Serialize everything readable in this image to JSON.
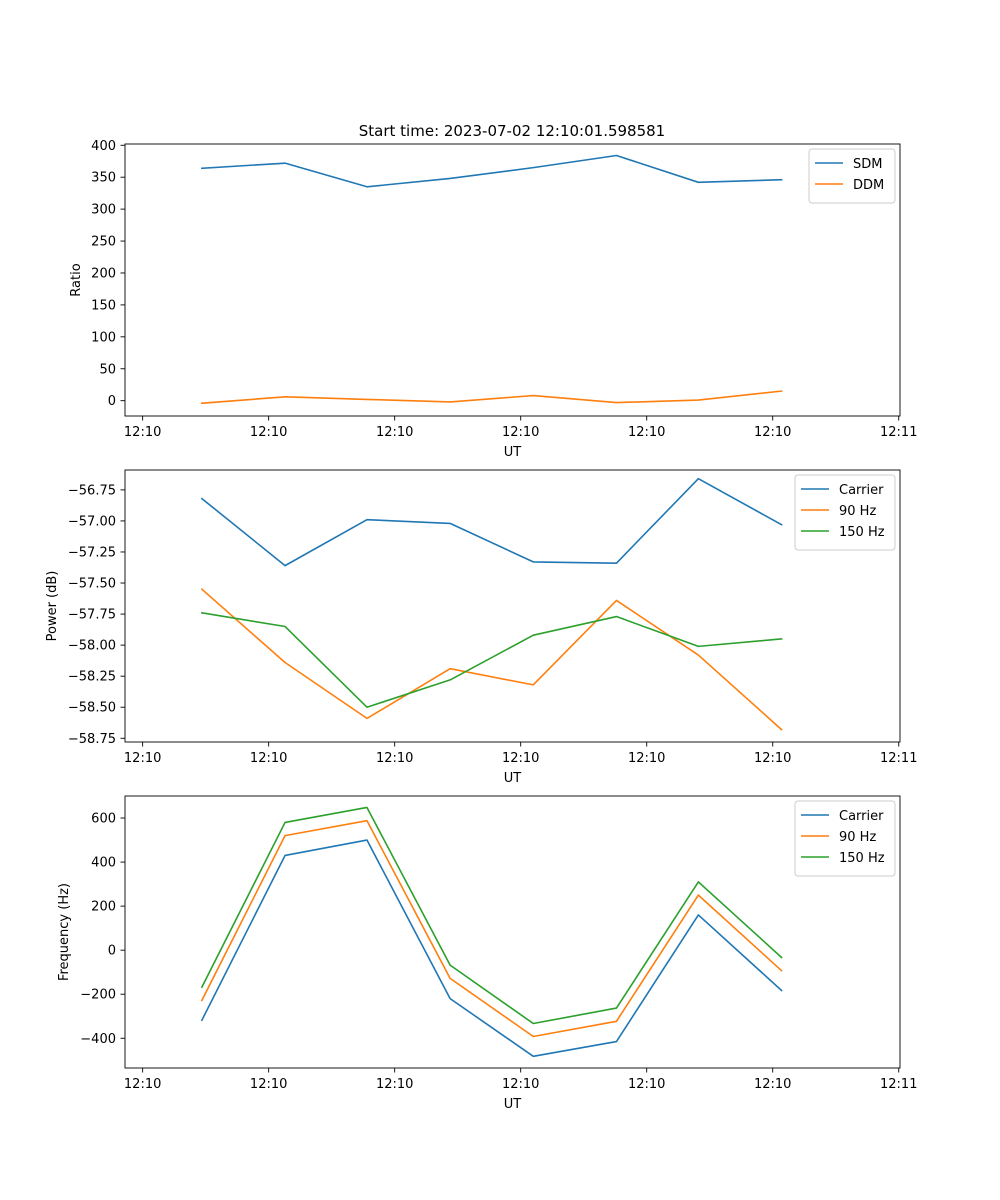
{
  "title": "Start time: 2023-07-02 12:10:01.598581",
  "chart_data": [
    {
      "type": "line",
      "xlabel": "UT",
      "ylabel": "Ratio",
      "x_tick_labels": [
        "12:10",
        "12:10",
        "12:10",
        "12:10",
        "12:10",
        "12:10",
        "12:11"
      ],
      "x_ticks": [
        0,
        1,
        2,
        3,
        4,
        5,
        6
      ],
      "xlim": [
        -0.14,
        6.01
      ],
      "y_ticks": [
        0,
        50,
        100,
        150,
        200,
        250,
        300,
        350,
        400
      ],
      "ylim": [
        -24,
        402
      ],
      "legend_position": "top-right",
      "x": [
        0.47,
        1.13,
        1.78,
        2.44,
        3.1,
        3.76,
        4.41,
        5.07
      ],
      "series": [
        {
          "name": "SDM",
          "color": "#1f77b4",
          "values": [
            364,
            372,
            335,
            348,
            365,
            384,
            342,
            346
          ]
        },
        {
          "name": "DDM",
          "color": "#ff7f0e",
          "values": [
            -4,
            6,
            2,
            -2,
            8,
            -3,
            1,
            15
          ]
        }
      ]
    },
    {
      "type": "line",
      "xlabel": "UT",
      "ylabel": "Power (dB)",
      "x_tick_labels": [
        "12:10",
        "12:10",
        "12:10",
        "12:10",
        "12:10",
        "12:10",
        "12:11"
      ],
      "x_ticks": [
        0,
        1,
        2,
        3,
        4,
        5,
        6
      ],
      "xlim": [
        -0.14,
        6.01
      ],
      "y_ticks": [
        -58.75,
        -58.5,
        -58.25,
        -58.0,
        -57.75,
        -57.5,
        -57.25,
        -57.0,
        -56.75
      ],
      "y_tick_labels": [
        "−58.75",
        "−58.50",
        "−58.25",
        "−58.00",
        "−57.75",
        "−57.50",
        "−57.25",
        "−57.00",
        "−56.75"
      ],
      "ylim": [
        -58.78,
        -56.59
      ],
      "legend_position": "top-right",
      "x": [
        0.47,
        1.13,
        1.78,
        2.44,
        3.1,
        3.76,
        4.41,
        5.07
      ],
      "series": [
        {
          "name": "Carrier",
          "color": "#1f77b4",
          "values": [
            -56.82,
            -57.36,
            -56.99,
            -57.02,
            -57.33,
            -57.34,
            -56.66,
            -57.03
          ]
        },
        {
          "name": "90 Hz",
          "color": "#ff7f0e",
          "values": [
            -57.55,
            -58.14,
            -58.59,
            -58.19,
            -58.32,
            -57.64,
            -58.08,
            -58.68
          ]
        },
        {
          "name": "150 Hz",
          "color": "#2ca02c",
          "values": [
            -57.74,
            -57.85,
            -58.5,
            -58.28,
            -57.92,
            -57.77,
            -58.01,
            -57.95
          ]
        }
      ]
    },
    {
      "type": "line",
      "xlabel": "UT",
      "ylabel": "Frequency (Hz)",
      "x_tick_labels": [
        "12:10",
        "12:10",
        "12:10",
        "12:10",
        "12:10",
        "12:10",
        "12:11"
      ],
      "x_ticks": [
        0,
        1,
        2,
        3,
        4,
        5,
        6
      ],
      "xlim": [
        -0.14,
        6.01
      ],
      "y_ticks": [
        -400,
        -200,
        0,
        200,
        400,
        600
      ],
      "y_tick_labels": [
        "−400",
        "−200",
        "0",
        "200",
        "400",
        "600"
      ],
      "ylim": [
        -535,
        700
      ],
      "legend_position": "top-right",
      "x": [
        0.47,
        1.13,
        1.78,
        2.44,
        3.1,
        3.76,
        4.41,
        5.07
      ],
      "series": [
        {
          "name": "Carrier",
          "color": "#1f77b4",
          "values": [
            -318,
            430,
            500,
            -220,
            -482,
            -415,
            160,
            -183
          ]
        },
        {
          "name": "90 Hz",
          "color": "#ff7f0e",
          "values": [
            -228,
            520,
            588,
            -128,
            -392,
            -323,
            250,
            -93
          ]
        },
        {
          "name": "150 Hz",
          "color": "#2ca02c",
          "values": [
            -168,
            580,
            648,
            -68,
            -333,
            -263,
            310,
            -33
          ]
        }
      ]
    }
  ]
}
